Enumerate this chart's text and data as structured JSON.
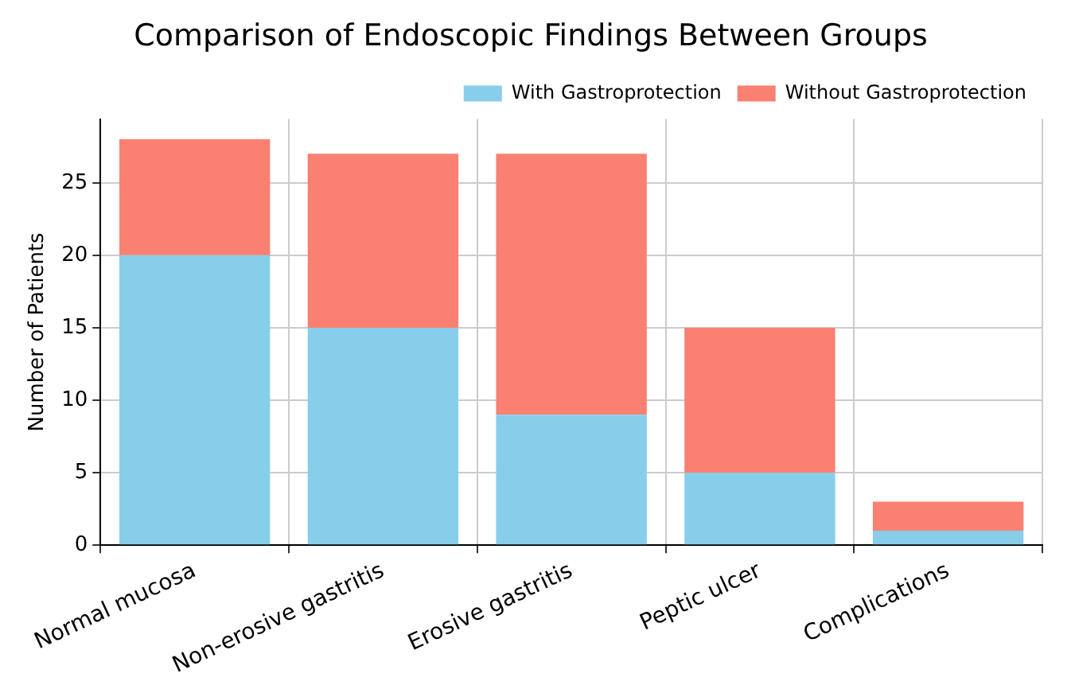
{
  "chart_data": {
    "type": "bar",
    "title": "Comparison of Endoscopic Findings Between Groups",
    "ylabel": "Number of Patients",
    "categories": [
      "Normal mucosa",
      "Non-erosive gastritis",
      "Erosive gastritis",
      "Peptic ulcer",
      "Complications"
    ],
    "series": [
      {
        "name": "With Gastroprotection",
        "color": "#87ceeb",
        "values": [
          20,
          15,
          9,
          5,
          1
        ]
      },
      {
        "name": "Without Gastroprotection",
        "color": "#fa8072",
        "values": [
          8,
          12,
          18,
          10,
          2
        ]
      }
    ],
    "stacked": true,
    "ylim": [
      0,
      29.4
    ],
    "yticks": [
      0,
      5,
      10,
      15,
      20,
      25
    ],
    "grid": true,
    "legend": "top right"
  }
}
